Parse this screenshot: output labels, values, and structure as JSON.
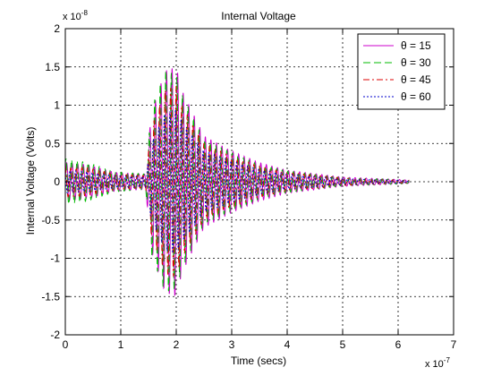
{
  "chart_data": {
    "type": "line",
    "title": "Internal Voltage",
    "xlabel": "Time (secs)",
    "ylabel": "Internal Voltage (Volts)",
    "xlim": [
      0,
      7e-07
    ],
    "ylim": [
      -2e-08,
      2e-08
    ],
    "x_ticks": [
      0,
      1,
      2,
      3,
      4,
      5,
      6,
      7
    ],
    "y_ticks": [
      -2,
      -1.5,
      -1,
      -0.5,
      0,
      0.5,
      1,
      1.5,
      2
    ],
    "x_multiplier": "x 10",
    "x_exponent": "-7",
    "y_multiplier": "x 10",
    "y_exponent": "-8",
    "grid": true,
    "legend_position": "top-right",
    "x_unit_scale": 1e-07,
    "y_unit_scale": 1e-08,
    "series": [
      {
        "name": "θ = 15",
        "color": "#cc00cc",
        "dash": "solid",
        "phase": 0.0,
        "envelope": [
          [
            0,
            0.25
          ],
          [
            0.4,
            0.22
          ],
          [
            0.9,
            0.12
          ],
          [
            1.45,
            0.1
          ],
          [
            1.55,
            0.9
          ],
          [
            1.8,
            1.45
          ],
          [
            2.0,
            1.5
          ],
          [
            2.1,
            1.2
          ],
          [
            2.5,
            0.6
          ],
          [
            3.0,
            0.4
          ],
          [
            3.5,
            0.25
          ],
          [
            4.0,
            0.15
          ],
          [
            5.0,
            0.06
          ],
          [
            6.0,
            0.03
          ],
          [
            6.2,
            0.02
          ]
        ]
      },
      {
        "name": "θ = 30",
        "color": "#00bb00",
        "dash": "8,4",
        "phase": 0.8,
        "envelope": [
          [
            0,
            0.3
          ],
          [
            0.4,
            0.25
          ],
          [
            0.9,
            0.13
          ],
          [
            1.45,
            0.1
          ],
          [
            1.55,
            0.95
          ],
          [
            1.8,
            1.45
          ],
          [
            2.0,
            1.4
          ],
          [
            2.1,
            1.15
          ],
          [
            2.5,
            0.55
          ],
          [
            3.0,
            0.38
          ],
          [
            3.5,
            0.22
          ],
          [
            4.0,
            0.14
          ],
          [
            5.0,
            0.05
          ],
          [
            6.0,
            0.03
          ],
          [
            6.2,
            0.02
          ]
        ]
      },
      {
        "name": "θ = 45",
        "color": "#dd0000",
        "dash": "7,3,2,3",
        "phase": 1.6,
        "envelope": [
          [
            0,
            0.2
          ],
          [
            0.4,
            0.18
          ],
          [
            0.9,
            0.1
          ],
          [
            1.45,
            0.08
          ],
          [
            1.55,
            0.7
          ],
          [
            1.8,
            1.2
          ],
          [
            2.0,
            1.25
          ],
          [
            2.1,
            1.0
          ],
          [
            2.5,
            0.5
          ],
          [
            3.0,
            0.33
          ],
          [
            3.5,
            0.2
          ],
          [
            4.0,
            0.12
          ],
          [
            5.0,
            0.05
          ],
          [
            6.0,
            0.02
          ],
          [
            6.2,
            0.02
          ]
        ]
      },
      {
        "name": "θ = 60",
        "color": "#0000cc",
        "dash": "2,2",
        "phase": 2.4,
        "envelope": [
          [
            0,
            0.15
          ],
          [
            0.4,
            0.13
          ],
          [
            0.9,
            0.08
          ],
          [
            1.45,
            0.07
          ],
          [
            1.55,
            0.5
          ],
          [
            1.8,
            0.9
          ],
          [
            2.0,
            0.95
          ],
          [
            2.1,
            0.8
          ],
          [
            2.5,
            0.4
          ],
          [
            3.0,
            0.27
          ],
          [
            3.5,
            0.16
          ],
          [
            4.0,
            0.1
          ],
          [
            5.0,
            0.04
          ],
          [
            6.0,
            0.02
          ],
          [
            6.2,
            0.01
          ]
        ]
      }
    ],
    "x_end": 6.2,
    "oscillation_period": 0.1
  }
}
